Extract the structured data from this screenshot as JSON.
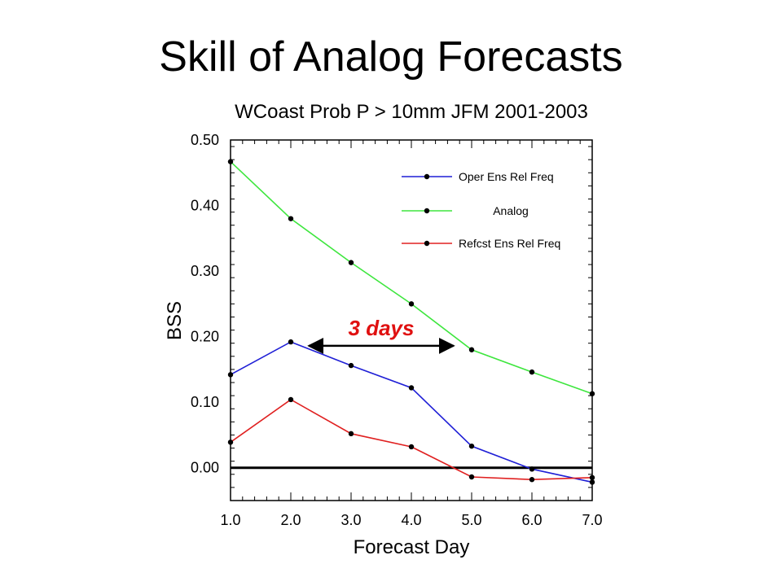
{
  "slide": {
    "title": "Skill of Analog Forecasts"
  },
  "chart_data": {
    "type": "line",
    "title": "WCoast Prob P > 10mm JFM 2001-2003",
    "xlabel": "Forecast Day",
    "ylabel": "BSS",
    "xlim": [
      1.0,
      7.0
    ],
    "ylim": [
      -0.05,
      0.5
    ],
    "x_ticks": [
      "1.0",
      "2.0",
      "3.0",
      "4.0",
      "5.0",
      "6.0",
      "7.0"
    ],
    "y_ticks": [
      "0.00",
      "0.10",
      "0.20",
      "0.30",
      "0.40",
      "0.50"
    ],
    "x": [
      1,
      2,
      3,
      4,
      5,
      6,
      7
    ],
    "legend_position": "top-right",
    "series": [
      {
        "name": "Oper Ens Rel Freq",
        "color": "#1f1fd6",
        "values": [
          0.142,
          0.192,
          0.156,
          0.122,
          0.033,
          -0.002,
          -0.022
        ]
      },
      {
        "name": "Analog",
        "color": "#3ee63e",
        "values": [
          0.467,
          0.38,
          0.313,
          0.25,
          0.18,
          0.146,
          0.113
        ]
      },
      {
        "name": "Refcst Ens Rel Freq",
        "color": "#e02020",
        "values": [
          0.039,
          0.104,
          0.052,
          0.032,
          -0.014,
          -0.018,
          -0.015
        ]
      }
    ],
    "zero_line": 0.0,
    "annotation": {
      "text": "3 days",
      "color": "#e01010",
      "arrow_from_x": 2.3,
      "arrow_to_x": 4.7,
      "arrow_y": 0.186
    }
  }
}
